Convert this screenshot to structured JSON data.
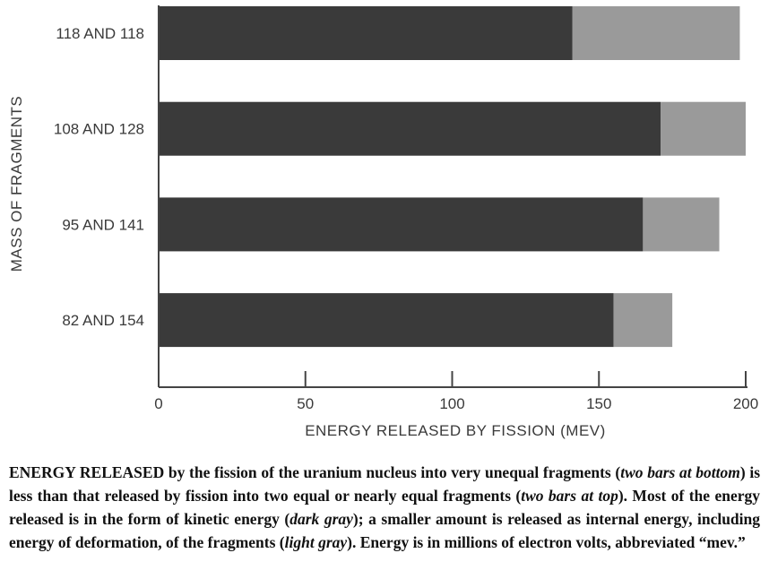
{
  "chart_data": {
    "type": "stacked-bar-horizontal",
    "orientation": "horizontal",
    "categories": [
      "118 AND 118",
      "108 AND 128",
      "95 AND 141",
      "82 AND 154"
    ],
    "series": [
      {
        "name": "kinetic energy (dark gray)",
        "color": "#3a3a3a",
        "values": [
          141,
          171,
          165,
          155
        ]
      },
      {
        "name": "internal energy (light gray)",
        "color": "#9a9a9a",
        "values": [
          57,
          29,
          26,
          20
        ]
      }
    ],
    "xlim": [
      0,
      200
    ],
    "xticks": [
      0,
      50,
      100,
      150,
      200
    ],
    "xtick_labels": [
      "0",
      "50",
      "100",
      "150",
      "200"
    ],
    "xlabel": "ENERGY RELEASED BY FISSION (MEV)",
    "ylabel": "MASS OF FRAGMENTS",
    "grid": false
  },
  "caption": {
    "lead": "ENERGY RELEASED",
    "seg1": " by the fission of the uranium nucleus into very unequal fragments (",
    "em1": "two bars at bottom",
    "seg2": ") is less than that released by fission into two equal or nearly equal fragments (",
    "em2": "two bars at top",
    "seg3": "). Most of the energy released is in the form of kinetic energy (",
    "em3": "dark gray",
    "seg4": "); a smaller amount is released as internal energy, including energy of deformation, of the fragments (",
    "em4": "light gray",
    "seg5": "). Energy is in millions of electron volts, abbreviated “mev.”"
  }
}
